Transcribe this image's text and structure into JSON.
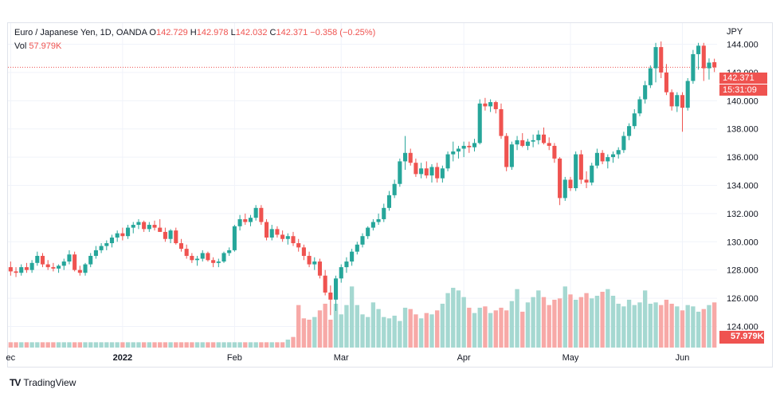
{
  "legend": {
    "symbol": "Euro / Japanese Yen, 1D, OANDA",
    "o_label": "O",
    "o_value": "142.729",
    "h_label": "H",
    "h_value": "142.978",
    "l_label": "L",
    "l_value": "142.032",
    "c_label": "C",
    "c_value": "142.371",
    "change": "−0.358 (−0.25%)",
    "vol_label": "Vol",
    "vol_value": "57.979K"
  },
  "currency": "JPY",
  "last_price": "142.371",
  "countdown": "15:31:09",
  "volume_tag": "57.979K",
  "footer": {
    "brand": "TradingView",
    "logo": "TV"
  },
  "colors": {
    "up": "#26a69a",
    "down": "#ef5350",
    "up_vol": "#a5d8d1",
    "down_vol": "#f7a9a7",
    "grid": "#f0f3fa"
  },
  "chart_data": {
    "type": "candlestick",
    "title": "Euro / Japanese Yen, 1D, OANDA",
    "ylabel": "JPY",
    "ylim": [
      122.5,
      145.5
    ],
    "y_ticks": [
      "144.000",
      "142.000",
      "140.000",
      "138.000",
      "136.000",
      "134.000",
      "132.000",
      "130.000",
      "128.000",
      "126.000",
      "124.000"
    ],
    "x_ticks": [
      {
        "label": "ec",
        "index": 0
      },
      {
        "label": "2022",
        "index": 21
      },
      {
        "label": "Feb",
        "index": 42
      },
      {
        "label": "Mar",
        "index": 62
      },
      {
        "label": "Apr",
        "index": 85
      },
      {
        "label": "May",
        "index": 105
      },
      {
        "label": "Jun",
        "index": 126
      }
    ],
    "series": [
      {
        "name": "EURJPY",
        "ohlc": [
          [
            128.2,
            128.6,
            127.6,
            127.9
          ],
          [
            127.9,
            128.2,
            127.5,
            127.8
          ],
          [
            127.8,
            128.4,
            127.6,
            128.2
          ],
          [
            128.2,
            128.5,
            127.8,
            128.0
          ],
          [
            128.0,
            128.7,
            127.8,
            128.5
          ],
          [
            128.5,
            129.3,
            128.3,
            129.0
          ],
          [
            129.0,
            129.2,
            128.2,
            128.4
          ],
          [
            128.4,
            128.7,
            128.0,
            128.2
          ],
          [
            128.2,
            128.5,
            127.9,
            128.1
          ],
          [
            128.1,
            128.4,
            127.8,
            128.3
          ],
          [
            128.3,
            128.8,
            128.0,
            128.6
          ],
          [
            128.6,
            129.4,
            128.4,
            129.1
          ],
          [
            129.1,
            129.3,
            127.9,
            128.0
          ],
          [
            128.0,
            128.3,
            127.6,
            127.8
          ],
          [
            127.8,
            128.5,
            127.6,
            128.4
          ],
          [
            128.4,
            129.2,
            128.2,
            129.0
          ],
          [
            129.0,
            129.7,
            128.8,
            129.4
          ],
          [
            129.4,
            129.9,
            129.2,
            129.7
          ],
          [
            129.7,
            130.1,
            129.4,
            129.9
          ],
          [
            129.9,
            130.5,
            129.6,
            130.3
          ],
          [
            130.3,
            130.8,
            130.0,
            130.6
          ],
          [
            130.6,
            131.0,
            130.1,
            130.4
          ],
          [
            130.4,
            131.2,
            130.2,
            131.0
          ],
          [
            131.0,
            131.4,
            130.6,
            131.2
          ],
          [
            131.2,
            131.6,
            130.9,
            131.4
          ],
          [
            131.4,
            131.5,
            130.7,
            130.9
          ],
          [
            130.9,
            131.4,
            130.7,
            131.2
          ],
          [
            131.2,
            131.5,
            130.8,
            131.0
          ],
          [
            131.0,
            131.6,
            130.7,
            130.7
          ],
          [
            130.7,
            131.0,
            130.0,
            130.2
          ],
          [
            130.2,
            130.9,
            129.9,
            130.8
          ],
          [
            130.8,
            131.0,
            129.8,
            129.9
          ],
          [
            129.9,
            130.2,
            129.3,
            129.5
          ],
          [
            129.5,
            129.8,
            128.8,
            129.0
          ],
          [
            129.0,
            129.2,
            128.5,
            128.7
          ],
          [
            128.7,
            129.0,
            128.3,
            128.8
          ],
          [
            128.8,
            129.4,
            128.6,
            129.2
          ],
          [
            129.2,
            129.3,
            128.6,
            128.7
          ],
          [
            128.7,
            128.9,
            128.2,
            128.5
          ],
          [
            128.5,
            128.8,
            128.2,
            128.6
          ],
          [
            128.6,
            129.3,
            128.5,
            129.2
          ],
          [
            129.2,
            129.6,
            129.0,
            129.4
          ],
          [
            129.4,
            131.2,
            129.3,
            131.1
          ],
          [
            131.1,
            131.9,
            130.8,
            131.6
          ],
          [
            131.6,
            132.0,
            131.2,
            131.4
          ],
          [
            131.4,
            131.9,
            131.1,
            131.7
          ],
          [
            131.7,
            132.6,
            131.5,
            132.4
          ],
          [
            132.4,
            132.6,
            131.2,
            131.4
          ],
          [
            131.4,
            131.6,
            130.1,
            130.3
          ],
          [
            130.3,
            131.2,
            130.1,
            130.9
          ],
          [
            130.9,
            131.1,
            130.3,
            130.5
          ],
          [
            130.5,
            130.8,
            130.0,
            130.2
          ],
          [
            130.2,
            130.6,
            129.8,
            130.4
          ],
          [
            130.4,
            130.7,
            129.7,
            129.9
          ],
          [
            129.9,
            130.2,
            129.3,
            129.6
          ],
          [
            129.6,
            129.8,
            128.7,
            129.0
          ],
          [
            129.0,
            129.3,
            128.2,
            128.4
          ],
          [
            128.4,
            128.9,
            128.0,
            128.6
          ],
          [
            128.6,
            128.8,
            127.4,
            127.6
          ],
          [
            127.6,
            128.0,
            126.2,
            126.4
          ],
          [
            126.4,
            126.9,
            124.8,
            125.9
          ],
          [
            125.9,
            127.6,
            125.1,
            127.4
          ],
          [
            127.4,
            128.4,
            127.1,
            128.2
          ],
          [
            128.2,
            128.9,
            127.8,
            128.6
          ],
          [
            128.6,
            129.5,
            128.3,
            129.3
          ],
          [
            129.3,
            130.0,
            129.1,
            129.8
          ],
          [
            129.8,
            130.6,
            129.6,
            130.4
          ],
          [
            130.4,
            131.1,
            130.2,
            131.0
          ],
          [
            131.0,
            131.6,
            130.8,
            131.4
          ],
          [
            131.4,
            132.0,
            131.2,
            131.6
          ],
          [
            131.6,
            132.7,
            131.4,
            132.4
          ],
          [
            132.4,
            133.6,
            132.2,
            133.3
          ],
          [
            133.3,
            134.4,
            133.1,
            134.1
          ],
          [
            134.1,
            135.9,
            133.9,
            135.7
          ],
          [
            135.7,
            137.5,
            135.1,
            136.3
          ],
          [
            136.3,
            136.6,
            135.4,
            135.6
          ],
          [
            135.6,
            135.9,
            134.6,
            134.8
          ],
          [
            134.8,
            135.6,
            134.5,
            135.2
          ],
          [
            135.2,
            135.7,
            134.5,
            134.7
          ],
          [
            134.7,
            135.5,
            134.2,
            135.3
          ],
          [
            135.3,
            135.6,
            134.2,
            134.5
          ],
          [
            134.5,
            135.4,
            134.2,
            135.2
          ],
          [
            135.2,
            136.4,
            135.0,
            136.2
          ],
          [
            136.2,
            137.1,
            135.7,
            136.4
          ],
          [
            136.4,
            136.8,
            135.9,
            136.6
          ],
          [
            136.6,
            137.1,
            136.0,
            136.8
          ],
          [
            136.8,
            137.1,
            136.3,
            136.7
          ],
          [
            136.7,
            137.3,
            136.4,
            137.0
          ],
          [
            137.0,
            140.1,
            136.9,
            139.8
          ],
          [
            139.8,
            140.2,
            139.3,
            139.6
          ],
          [
            139.6,
            140.1,
            139.2,
            139.9
          ],
          [
            139.9,
            140.0,
            139.1,
            139.4
          ],
          [
            139.4,
            139.8,
            137.3,
            137.5
          ],
          [
            137.5,
            137.7,
            135.0,
            135.3
          ],
          [
            135.3,
            137.1,
            135.1,
            136.9
          ],
          [
            136.9,
            137.5,
            136.5,
            137.2
          ],
          [
            137.2,
            137.7,
            136.7,
            136.8
          ],
          [
            136.8,
            137.3,
            136.5,
            137.1
          ],
          [
            137.1,
            137.6,
            136.7,
            137.2
          ],
          [
            137.2,
            137.9,
            136.9,
            137.6
          ],
          [
            137.6,
            138.1,
            136.9,
            137.0
          ],
          [
            137.0,
            137.4,
            136.5,
            136.8
          ],
          [
            136.8,
            137.0,
            135.6,
            135.9
          ],
          [
            135.9,
            136.0,
            132.6,
            133.1
          ],
          [
            133.1,
            134.6,
            132.9,
            134.4
          ],
          [
            134.4,
            134.6,
            133.6,
            133.8
          ],
          [
            133.8,
            136.4,
            133.6,
            136.2
          ],
          [
            136.2,
            136.5,
            134.1,
            134.4
          ],
          [
            134.4,
            135.0,
            133.8,
            134.2
          ],
          [
            134.2,
            135.6,
            134.0,
            135.4
          ],
          [
            135.4,
            136.6,
            135.2,
            136.3
          ],
          [
            136.3,
            136.5,
            135.5,
            135.7
          ],
          [
            135.7,
            136.2,
            135.2,
            136.0
          ],
          [
            136.0,
            136.4,
            135.6,
            136.2
          ],
          [
            136.2,
            136.7,
            135.9,
            136.5
          ],
          [
            136.5,
            137.8,
            136.3,
            137.5
          ],
          [
            137.5,
            138.4,
            137.2,
            138.2
          ],
          [
            138.2,
            139.4,
            138.0,
            139.1
          ],
          [
            139.1,
            140.3,
            138.9,
            140.1
          ],
          [
            140.1,
            141.4,
            139.8,
            141.1
          ],
          [
            141.1,
            142.5,
            140.9,
            142.3
          ],
          [
            142.3,
            144.1,
            141.3,
            143.8
          ],
          [
            143.8,
            144.2,
            141.6,
            142.0
          ],
          [
            142.0,
            142.6,
            140.4,
            140.6
          ],
          [
            140.6,
            140.8,
            139.3,
            139.6
          ],
          [
            139.6,
            140.6,
            139.2,
            140.4
          ],
          [
            140.4,
            140.6,
            137.8,
            139.5
          ],
          [
            139.5,
            141.6,
            139.3,
            141.4
          ],
          [
            141.4,
            143.6,
            141.2,
            143.3
          ],
          [
            143.3,
            144.1,
            142.2,
            143.9
          ],
          [
            143.9,
            144.1,
            141.4,
            142.3
          ],
          [
            142.3,
            143.0,
            141.5,
            142.7
          ],
          [
            142.729,
            142.978,
            142.032,
            142.371
          ]
        ]
      },
      {
        "name": "Vol",
        "values": [
          0.4,
          0.4,
          0.4,
          0.4,
          0.4,
          0.4,
          0.4,
          0.4,
          0.4,
          0.4,
          0.4,
          0.4,
          0.4,
          0.4,
          0.4,
          0.4,
          0.4,
          0.4,
          0.4,
          0.4,
          0.4,
          0.4,
          0.4,
          0.4,
          0.4,
          0.4,
          0.4,
          0.4,
          0.4,
          0.4,
          0.4,
          0.4,
          0.4,
          0.4,
          0.4,
          0.4,
          0.4,
          0.4,
          0.4,
          0.4,
          0.4,
          0.4,
          0.4,
          0.4,
          0.4,
          0.4,
          0.4,
          0.4,
          0.4,
          0.4,
          0.4,
          0.4,
          0.6,
          0.8,
          3.2,
          2.2,
          2.1,
          2.3,
          2.8,
          3.3,
          2.1,
          3.3,
          2.5,
          3.2,
          4.6,
          3.2,
          2.5,
          2.3,
          3.4,
          2.9,
          2.3,
          2.2,
          2.4,
          2.0,
          3.0,
          2.9,
          2.5,
          2.2,
          2.6,
          2.5,
          2.8,
          3.3,
          4.1,
          4.5,
          4.3,
          3.8,
          3.0,
          2.6,
          3.0,
          3.1,
          2.6,
          2.8,
          3.0,
          2.8,
          3.5,
          4.4,
          2.7,
          3.4,
          3.8,
          4.3,
          3.8,
          3.2,
          3.6,
          3.7,
          4.6,
          4.0,
          3.6,
          3.8,
          4.1,
          3.7,
          3.9,
          4.2,
          4.4,
          3.9,
          3.3,
          3.1,
          3.6,
          3.2,
          3.4,
          4.3,
          3.3,
          3.4,
          3.2,
          3.6,
          3.3,
          3.1,
          2.8,
          3.2,
          3.1,
          2.7,
          2.9,
          3.2,
          3.4,
          3.9,
          3.7,
          3.4,
          4.0,
          3.8,
          3.2,
          3.3,
          3.6,
          3.9,
          3.2,
          3.3
        ]
      }
    ],
    "volume_unit": "K",
    "grid": true
  }
}
